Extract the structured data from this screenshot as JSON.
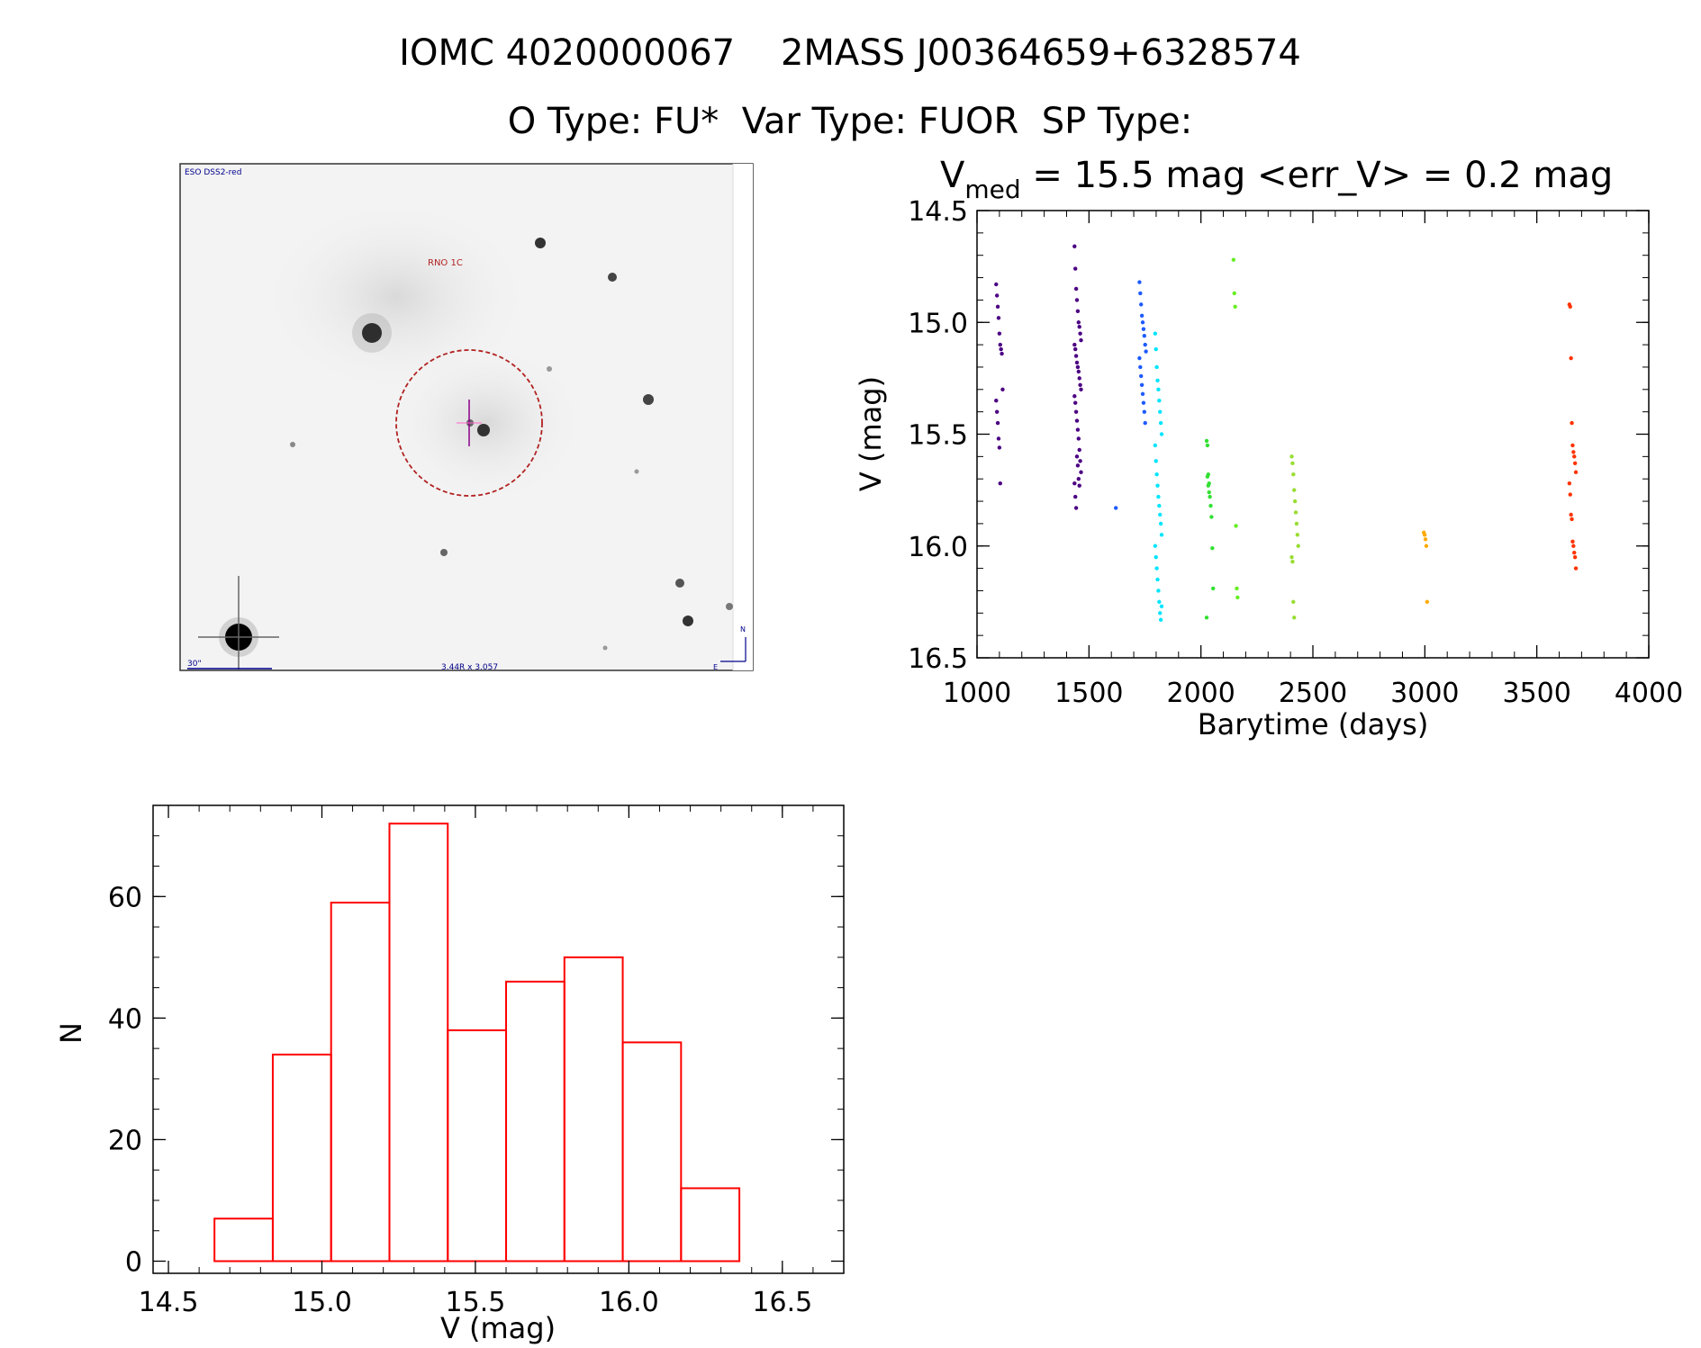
{
  "header": {
    "title_line1": "IOMC 4020000067    2MASS J00364659+6328574",
    "title_line2": "O Type: FU*  Var Type: FUOR  SP Type:"
  },
  "finder": {
    "top_left_label": "ESO DSS2-red",
    "object_label": "RNO 1C",
    "scale_label": "30\"",
    "field_label": "3.44R x 3.057",
    "north_label": "N",
    "east_label": "E"
  },
  "colors": {
    "histogram": "#ff0000",
    "finder_circle": "#b22222",
    "finder_labels": "#00008b",
    "seasons": [
      "#4b0082",
      "#4b0082",
      "#1e5bff",
      "#00e5ff",
      "#33e033",
      "#66ee22",
      "#99dd33",
      "#ffaa00",
      "#ff3300"
    ]
  },
  "chart_data": [
    {
      "type": "scatter",
      "title": "V",
      "title_sub": "med",
      "title_rest": " = 15.5 mag <err_V> = 0.2 mag",
      "xlabel": "Barytime (days)",
      "ylabel": "V (mag)",
      "xlim": [
        1000,
        4000
      ],
      "ylim": [
        16.5,
        14.5
      ],
      "y_inverted": true,
      "xticks": [
        "1000",
        "1500",
        "2000",
        "2500",
        "3000",
        "3500",
        "4000"
      ],
      "yticks": [
        "14.5",
        "15.0",
        "15.5",
        "16.0",
        "16.5"
      ],
      "seasons": [
        {
          "t": 1100,
          "values": [
            14.83,
            14.88,
            14.93,
            14.98,
            15.05,
            15.1,
            15.12,
            15.14,
            15.3,
            15.35,
            15.4,
            15.45,
            15.52,
            15.56,
            15.72
          ]
        },
        {
          "t": 1450,
          "values": [
            14.66,
            14.76,
            14.85,
            14.9,
            14.95,
            15.0,
            15.02,
            15.05,
            15.08,
            15.1,
            15.12,
            15.15,
            15.18,
            15.2,
            15.22,
            15.25,
            15.28,
            15.3,
            15.33,
            15.36,
            15.4,
            15.44,
            15.48,
            15.52,
            15.57,
            15.62,
            15.67,
            15.72,
            15.78,
            15.83,
            15.6,
            15.64,
            15.7,
            15.73
          ]
        },
        {
          "t": 1740,
          "values": [
            14.82,
            14.87,
            14.92,
            14.97,
            15.0,
            15.03,
            15.06,
            15.1,
            15.13,
            15.16,
            15.2,
            15.24,
            15.28,
            15.32,
            15.36,
            15.4,
            15.45
          ]
        },
        {
          "t": 1810,
          "values": [
            15.05,
            15.12,
            15.2,
            15.26,
            15.3,
            15.35,
            15.4,
            15.45,
            15.5,
            15.55,
            15.62,
            15.68,
            15.73,
            15.78,
            15.82,
            15.86,
            15.9,
            15.95,
            16.0,
            16.05,
            16.1,
            16.15,
            16.2,
            16.25,
            16.3,
            16.33,
            16.27
          ]
        },
        {
          "t": 2040,
          "values": [
            15.53,
            15.55,
            15.68,
            15.72,
            15.78,
            15.82,
            15.87,
            16.01,
            16.19,
            16.32,
            15.69,
            15.73,
            15.76
          ]
        },
        {
          "t": 2160,
          "values": [
            14.72,
            14.87,
            14.93,
            15.91,
            16.19,
            16.23
          ]
        },
        {
          "t": 2420,
          "values": [
            15.6,
            15.63,
            15.68,
            15.75,
            15.8,
            15.85,
            15.9,
            15.95,
            16.0,
            16.05,
            16.07,
            16.25,
            16.32
          ]
        },
        {
          "t": 3010,
          "values": [
            15.94,
            15.95,
            15.97,
            16.0,
            16.25
          ]
        },
        {
          "t": 3660,
          "values": [
            14.92,
            14.93,
            15.16,
            15.45,
            15.55,
            15.58,
            15.6,
            15.63,
            15.67,
            15.72,
            15.77,
            15.86,
            15.88,
            15.98,
            16.0,
            16.03,
            16.05,
            16.1
          ]
        }
      ]
    },
    {
      "type": "bar",
      "title": "",
      "xlabel": "V (mag)",
      "ylabel": "N",
      "xlim": [
        14.45,
        16.7
      ],
      "ylim": [
        -2,
        75
      ],
      "xticks": [
        "14.5",
        "15.0",
        "15.5",
        "16.0",
        "16.5"
      ],
      "yticks": [
        "0",
        "20",
        "40",
        "60"
      ],
      "bin_edges": [
        14.65,
        14.84,
        15.03,
        15.22,
        15.41,
        15.6,
        15.79,
        15.98,
        16.17,
        16.36
      ],
      "values": [
        7,
        34,
        59,
        72,
        38,
        46,
        50,
        36,
        12
      ]
    }
  ]
}
